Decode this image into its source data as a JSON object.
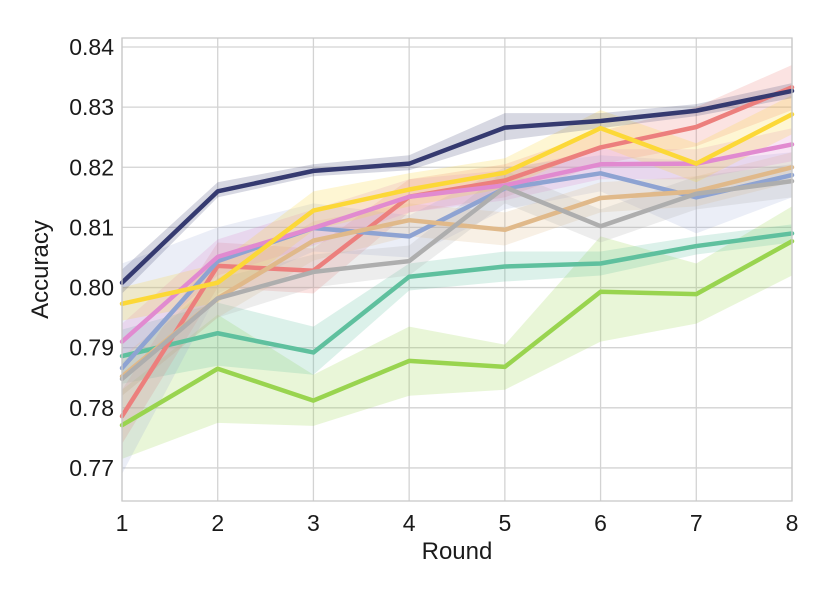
{
  "chart_data": {
    "type": "line",
    "title": "",
    "xlabel": "Round",
    "ylabel": "Accuracy",
    "x": [
      1,
      2,
      3,
      4,
      5,
      6,
      7,
      8
    ],
    "xticks": [
      "1",
      "2",
      "3",
      "4",
      "5",
      "6",
      "7",
      "8"
    ],
    "yticks": [
      "0.77",
      "0.78",
      "0.79",
      "0.80",
      "0.81",
      "0.82",
      "0.83",
      "0.84"
    ],
    "xlim": [
      1,
      8
    ],
    "ylim": [
      0.7645,
      0.8415
    ],
    "grid": true,
    "legend": "none",
    "series": [
      {
        "color": "#99d44f",
        "band_opacity": 0.22,
        "values": [
          0.7771,
          0.7865,
          0.7812,
          0.7878,
          0.7868,
          0.7993,
          0.7989,
          0.8077
        ],
        "lower": [
          0.7715,
          0.7775,
          0.777,
          0.782,
          0.783,
          0.791,
          0.794,
          0.802
        ],
        "upper": [
          0.783,
          0.7955,
          0.7855,
          0.7935,
          0.7905,
          0.8085,
          0.804,
          0.8135
        ]
      },
      {
        "color": "#5fc09e",
        "band_opacity": 0.22,
        "values": [
          0.7886,
          0.7924,
          0.7892,
          0.8018,
          0.8035,
          0.804,
          0.8069,
          0.809
        ],
        "lower": [
          0.784,
          0.787,
          0.7855,
          0.7995,
          0.801,
          0.802,
          0.8055,
          0.8075
        ],
        "upper": [
          0.793,
          0.7975,
          0.7935,
          0.804,
          0.806,
          0.806,
          0.8085,
          0.8105
        ]
      },
      {
        "color": "#ec7f7d",
        "band_opacity": 0.22,
        "values": [
          0.7786,
          0.8036,
          0.8028,
          0.8151,
          0.8178,
          0.8233,
          0.8267,
          0.8333
        ],
        "lower": [
          0.774,
          0.8,
          0.799,
          0.8125,
          0.815,
          0.8205,
          0.8235,
          0.8295
        ],
        "upper": [
          0.783,
          0.8075,
          0.8065,
          0.818,
          0.8205,
          0.826,
          0.83,
          0.837
        ]
      },
      {
        "color": "#8ea3d2",
        "band_opacity": 0.18,
        "values": [
          0.7866,
          0.8044,
          0.8099,
          0.8085,
          0.8165,
          0.819,
          0.815,
          0.8187
        ],
        "lower": [
          0.769,
          0.799,
          0.806,
          0.805,
          0.813,
          0.816,
          0.809,
          0.815
        ],
        "upper": [
          0.804,
          0.81,
          0.814,
          0.812,
          0.82,
          0.822,
          0.821,
          0.8225
        ]
      },
      {
        "color": "#e0b98a",
        "band_opacity": 0.22,
        "values": [
          0.7852,
          0.7982,
          0.8078,
          0.8112,
          0.8096,
          0.8149,
          0.816,
          0.82
        ],
        "lower": [
          0.782,
          0.795,
          0.8045,
          0.8085,
          0.807,
          0.8125,
          0.8135,
          0.8175
        ],
        "upper": [
          0.7885,
          0.8015,
          0.811,
          0.814,
          0.8125,
          0.8175,
          0.8185,
          0.8225
        ]
      },
      {
        "color": "#e18ad0",
        "band_opacity": 0.22,
        "values": [
          0.791,
          0.8051,
          0.8099,
          0.8151,
          0.817,
          0.8205,
          0.8206,
          0.8238
        ],
        "lower": [
          0.788,
          0.802,
          0.807,
          0.8125,
          0.8145,
          0.818,
          0.818,
          0.821
        ],
        "upper": [
          0.794,
          0.808,
          0.813,
          0.818,
          0.8195,
          0.823,
          0.823,
          0.8265
        ]
      },
      {
        "color": "#aeaeae",
        "band_opacity": 0.22,
        "values": [
          0.7848,
          0.7982,
          0.8026,
          0.8044,
          0.8167,
          0.8102,
          0.8156,
          0.8177
        ],
        "lower": [
          0.782,
          0.795,
          0.8,
          0.802,
          0.814,
          0.8075,
          0.813,
          0.815
        ],
        "upper": [
          0.7875,
          0.8015,
          0.8055,
          0.807,
          0.8195,
          0.813,
          0.8185,
          0.8205
        ]
      },
      {
        "color": "#fcd837",
        "band_opacity": 0.22,
        "values": [
          0.7973,
          0.8008,
          0.8128,
          0.8163,
          0.8191,
          0.8265,
          0.8206,
          0.8288
        ],
        "lower": [
          0.7945,
          0.7975,
          0.8095,
          0.8135,
          0.8165,
          0.8235,
          0.8175,
          0.8255
        ],
        "upper": [
          0.8,
          0.804,
          0.816,
          0.819,
          0.8215,
          0.8295,
          0.824,
          0.832
        ]
      },
      {
        "color": "#353a70",
        "band_opacity": 0.2,
        "values": [
          0.8008,
          0.816,
          0.8194,
          0.8206,
          0.8266,
          0.8277,
          0.8294,
          0.8327
        ],
        "lower": [
          0.799,
          0.815,
          0.8185,
          0.8195,
          0.8245,
          0.8265,
          0.8285,
          0.8315
        ],
        "upper": [
          0.803,
          0.8175,
          0.8205,
          0.822,
          0.829,
          0.829,
          0.8305,
          0.834
        ]
      }
    ]
  }
}
